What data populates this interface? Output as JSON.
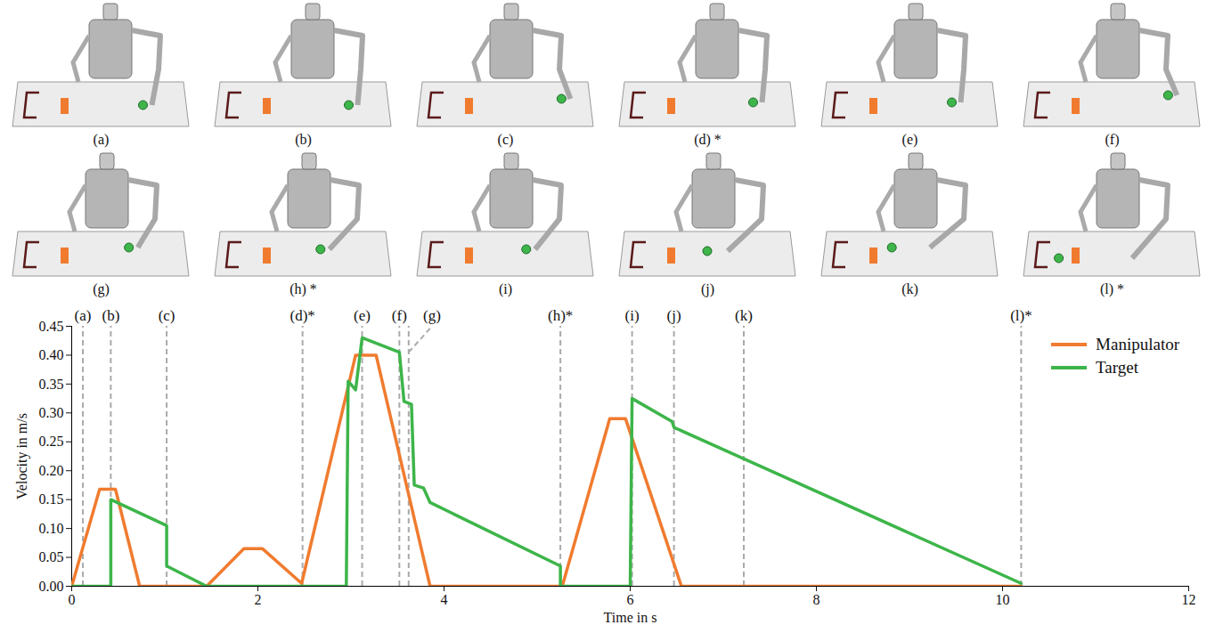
{
  "chart_data": {
    "type": "line",
    "xlabel": "Time in s",
    "ylabel": "Velocity in m/s",
    "xlim": [
      0,
      12
    ],
    "xticks": [
      0,
      2,
      4,
      6,
      8,
      10,
      12
    ],
    "ylim": [
      0,
      0.45
    ],
    "yticks": [
      {
        "value": 0,
        "label": "0.00"
      },
      {
        "value": 0.05,
        "label": "0.05"
      },
      {
        "value": 0.1,
        "label": "0.10"
      },
      {
        "value": 0.15,
        "label": "0.15"
      },
      {
        "value": 0.2,
        "label": "0.20"
      },
      {
        "value": 0.25,
        "label": "0.25"
      },
      {
        "value": 0.3,
        "label": "0.30"
      },
      {
        "value": 0.35,
        "label": "0.35"
      },
      {
        "value": 0.4,
        "label": "0.40"
      },
      {
        "value": 0.45,
        "label": "0.45"
      }
    ],
    "legend": "upper right",
    "series": [
      {
        "name": "Manipulator",
        "color": "#f07b2f",
        "x": [
          0,
          0.3,
          0.47,
          0.73,
          1.45,
          1.85,
          2.05,
          2.47,
          3.05,
          3.27,
          3.85,
          5.27,
          5.78,
          5.95,
          6.55,
          10.2
        ],
        "values": [
          0,
          0.168,
          0.168,
          0,
          0,
          0.065,
          0.065,
          0.005,
          0.4,
          0.4,
          0,
          0,
          0.29,
          0.29,
          0,
          0
        ]
      },
      {
        "name": "Target",
        "color": "#3db54a",
        "x": [
          0,
          0.42,
          0.42,
          1.02,
          1.02,
          1.45,
          2.95,
          2.97,
          3.05,
          3.12,
          3.52,
          3.57,
          3.65,
          3.68,
          3.78,
          3.85,
          5.25,
          5.25,
          6.0,
          6.02,
          6.45,
          6.47,
          10.2
        ],
        "values": [
          0,
          0,
          0.15,
          0.105,
          0.035,
          0,
          0,
          0.355,
          0.34,
          0.43,
          0.405,
          0.32,
          0.315,
          0.175,
          0.17,
          0.145,
          0.035,
          0,
          0,
          0.325,
          0.285,
          0.275,
          0.005
        ]
      }
    ],
    "events": [
      {
        "x": 0.12,
        "label": "(a)"
      },
      {
        "x": 0.42,
        "label": "(b)"
      },
      {
        "x": 1.02,
        "label": "(c)"
      },
      {
        "x": 2.48,
        "label": "(d)*"
      },
      {
        "x": 3.12,
        "label": "(e)"
      },
      {
        "x": 3.52,
        "label": "(f)"
      },
      {
        "x": 3.62,
        "label": "(g)"
      },
      {
        "x": 5.25,
        "label": "(h)*"
      },
      {
        "x": 6.02,
        "label": "(i)"
      },
      {
        "x": 6.47,
        "label": "(j)"
      },
      {
        "x": 7.22,
        "label": "(k)"
      },
      {
        "x": 10.2,
        "label": "(l)*"
      }
    ]
  },
  "panels": [
    "(a)",
    "(b)",
    "(c)",
    "(d) *",
    "(e)",
    "(f)",
    "(g)",
    "(h) *",
    "(i)",
    "(j)",
    "(k)",
    "(l) *"
  ]
}
